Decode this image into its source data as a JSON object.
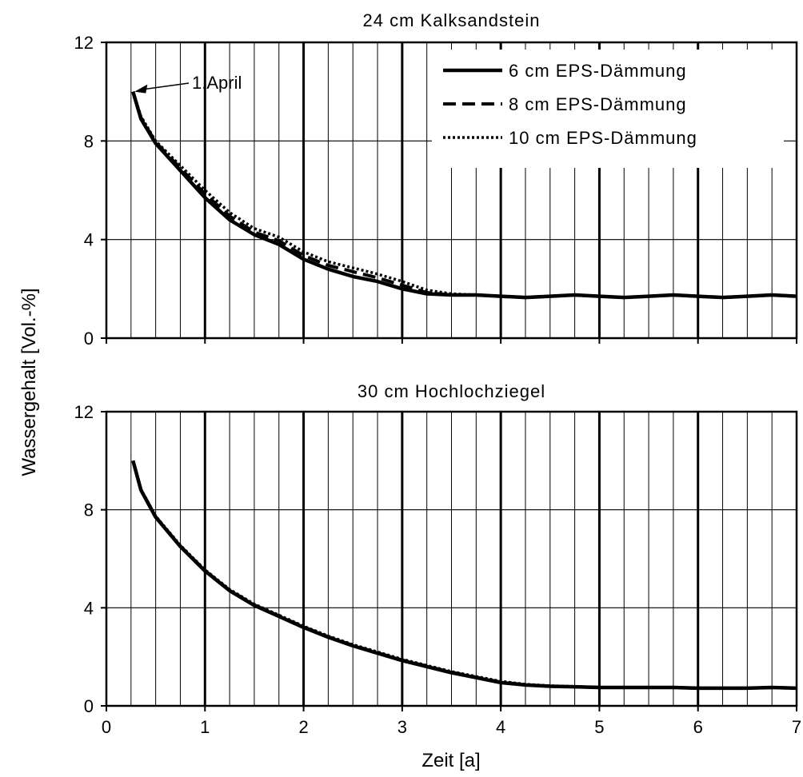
{
  "figure": {
    "ylabel": "Wassergehalt [Vol.-%]",
    "xlabel": "Zeit [a]"
  },
  "chart_data": [
    {
      "type": "line",
      "title": "24 cm Kalksandstein",
      "xlim": [
        0,
        7
      ],
      "ylim": [
        0,
        12
      ],
      "xticks": [
        0,
        1,
        2,
        3,
        4,
        5,
        6,
        7
      ],
      "yticks": [
        0,
        4,
        8,
        12
      ],
      "grid": true,
      "legend_position": "top-right",
      "annotation": {
        "text": "1.April",
        "x": 0.27,
        "y": 10.0
      },
      "series": [
        {
          "name": "6 cm EPS-Dämmung",
          "style": "solid",
          "x": [
            0.27,
            0.35,
            0.5,
            0.75,
            1.0,
            1.25,
            1.5,
            1.75,
            2.0,
            2.25,
            2.5,
            2.75,
            3.0,
            3.25,
            3.5,
            3.75,
            4.0,
            4.25,
            4.5,
            4.75,
            5.0,
            5.25,
            5.5,
            5.75,
            6.0,
            6.25,
            6.5,
            6.75,
            7.0
          ],
          "values": [
            10.0,
            8.9,
            7.9,
            6.8,
            5.7,
            4.8,
            4.2,
            3.8,
            3.2,
            2.8,
            2.5,
            2.3,
            2.0,
            1.8,
            1.75,
            1.75,
            1.7,
            1.65,
            1.7,
            1.75,
            1.7,
            1.65,
            1.7,
            1.75,
            1.7,
            1.65,
            1.7,
            1.75,
            1.7
          ]
        },
        {
          "name": "8 cm EPS-Dämmung",
          "style": "dashed",
          "x": [
            0.27,
            0.35,
            0.5,
            0.75,
            1.0,
            1.25,
            1.5,
            1.75,
            2.0,
            2.25,
            2.5,
            2.75,
            3.0,
            3.25,
            3.5,
            3.75,
            4.0,
            4.25,
            4.5,
            4.75,
            5.0,
            5.25,
            5.5,
            5.75,
            6.0,
            6.25,
            6.5,
            6.75,
            7.0
          ],
          "values": [
            10.0,
            8.95,
            7.95,
            6.9,
            5.85,
            4.95,
            4.3,
            3.95,
            3.35,
            2.95,
            2.7,
            2.45,
            2.15,
            1.85,
            1.75,
            1.75,
            1.7,
            1.65,
            1.7,
            1.75,
            1.7,
            1.65,
            1.7,
            1.75,
            1.7,
            1.65,
            1.7,
            1.75,
            1.7
          ]
        },
        {
          "name": "10 cm EPS-Dämmung",
          "style": "dotted",
          "x": [
            0.27,
            0.35,
            0.5,
            0.75,
            1.0,
            1.25,
            1.5,
            1.75,
            2.0,
            2.25,
            2.5,
            2.75,
            3.0,
            3.25,
            3.5,
            3.75,
            4.0,
            4.25,
            4.5,
            4.75,
            5.0,
            5.25,
            5.5,
            5.75,
            6.0,
            6.25,
            6.5,
            6.75,
            7.0
          ],
          "values": [
            10.0,
            9.0,
            8.0,
            7.0,
            6.0,
            5.1,
            4.45,
            4.1,
            3.5,
            3.1,
            2.85,
            2.6,
            2.3,
            1.95,
            1.8,
            1.75,
            1.7,
            1.65,
            1.7,
            1.75,
            1.7,
            1.65,
            1.7,
            1.75,
            1.7,
            1.65,
            1.7,
            1.75,
            1.7
          ]
        }
      ]
    },
    {
      "type": "line",
      "title": "30 cm Hochlochziegel",
      "xlim": [
        0,
        7
      ],
      "ylim": [
        0,
        12
      ],
      "xticks": [
        0,
        1,
        2,
        3,
        4,
        5,
        6,
        7
      ],
      "yticks": [
        0,
        4,
        8,
        12
      ],
      "grid": true,
      "series": [
        {
          "name": "6 cm EPS-Dämmung",
          "style": "solid",
          "x": [
            0.27,
            0.35,
            0.5,
            0.75,
            1.0,
            1.25,
            1.5,
            1.75,
            2.0,
            2.25,
            2.5,
            2.75,
            3.0,
            3.25,
            3.5,
            3.75,
            4.0,
            4.25,
            4.5,
            4.75,
            5.0,
            5.25,
            5.5,
            5.75,
            6.0,
            6.25,
            6.5,
            6.75,
            7.0
          ],
          "values": [
            10.0,
            8.8,
            7.7,
            6.5,
            5.5,
            4.7,
            4.1,
            3.65,
            3.2,
            2.8,
            2.45,
            2.15,
            1.85,
            1.6,
            1.35,
            1.15,
            0.95,
            0.85,
            0.8,
            0.78,
            0.75,
            0.75,
            0.75,
            0.75,
            0.72,
            0.72,
            0.72,
            0.75,
            0.72
          ]
        },
        {
          "name": "8 cm EPS-Dämmung",
          "style": "dashed",
          "x": [
            0.27,
            0.35,
            0.5,
            0.75,
            1.0,
            1.25,
            1.5,
            1.75,
            2.0,
            2.25,
            2.5,
            2.75,
            3.0,
            3.25,
            3.5,
            3.75,
            4.0,
            4.25,
            4.5,
            4.75,
            5.0,
            5.25,
            5.5,
            5.75,
            6.0,
            6.25,
            6.5,
            6.75,
            7.0
          ],
          "values": [
            10.0,
            8.82,
            7.72,
            6.52,
            5.52,
            4.72,
            4.12,
            3.67,
            3.22,
            2.82,
            2.47,
            2.17,
            1.87,
            1.62,
            1.37,
            1.17,
            0.97,
            0.86,
            0.8,
            0.78,
            0.75,
            0.75,
            0.75,
            0.75,
            0.72,
            0.72,
            0.72,
            0.75,
            0.72
          ]
        },
        {
          "name": "10 cm EPS-Dämmung",
          "style": "dotted",
          "x": [
            0.27,
            0.35,
            0.5,
            0.75,
            1.0,
            1.25,
            1.5,
            1.75,
            2.0,
            2.25,
            2.5,
            2.75,
            3.0,
            3.25,
            3.5,
            3.75,
            4.0,
            4.25,
            4.5,
            4.75,
            5.0,
            5.25,
            5.5,
            5.75,
            6.0,
            6.25,
            6.5,
            6.75,
            7.0
          ],
          "values": [
            10.0,
            8.84,
            7.74,
            6.55,
            5.55,
            4.75,
            4.15,
            3.7,
            3.25,
            2.85,
            2.5,
            2.2,
            1.9,
            1.65,
            1.4,
            1.2,
            1.0,
            0.88,
            0.82,
            0.79,
            0.76,
            0.75,
            0.75,
            0.75,
            0.72,
            0.72,
            0.72,
            0.75,
            0.72
          ]
        }
      ]
    }
  ]
}
